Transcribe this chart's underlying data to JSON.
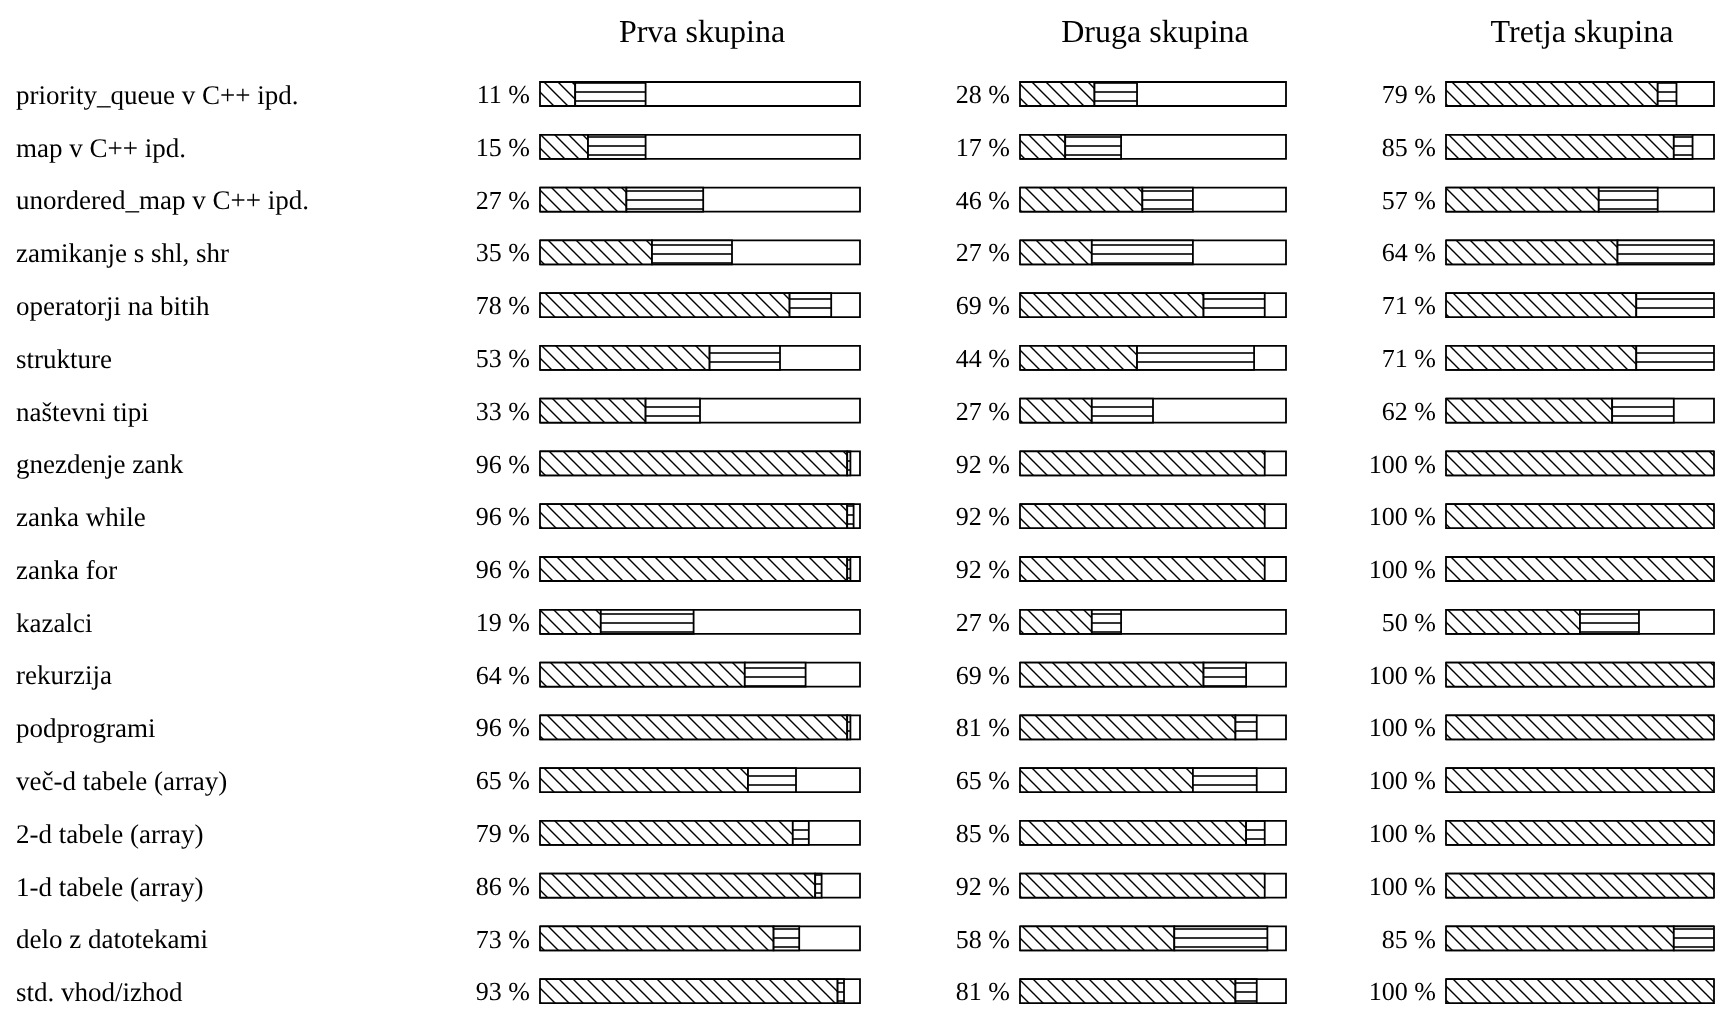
{
  "chart_data": [
    {
      "type": "bar",
      "orientation": "horizontal",
      "stacked": true,
      "title": "Prva skupina",
      "tick_labels": "y",
      "xlim": [
        0,
        100
      ],
      "categories": [
        "priority_queue v C++ ipd.",
        "map v C++ ipd.",
        "unordered_map v C++ ipd.",
        "zamikanje s shl, shr",
        "operatorji na bitih",
        "strukture",
        "naštevni tipi",
        "gnezdenje zank",
        "zanka while",
        "zanka for",
        "kazalci",
        "rekurzija",
        "podprogrami",
        "več-d tabele (array)",
        "2-d tabele (array)",
        "1-d tabele (array)",
        "delo z datotekami",
        "std. vhod/izhod"
      ],
      "series": [
        {
          "color": "#000000",
          "values": [
            11,
            15,
            27,
            35,
            78,
            53,
            33,
            96,
            96,
            96,
            19,
            64,
            96,
            65,
            79,
            86,
            73,
            93
          ],
          "value_labels": [
            "11 %",
            "15 %",
            "27 %",
            "35 %",
            "78 %",
            "53 %",
            "33 %",
            "96 %",
            "96 %",
            "96 %",
            "19 %",
            "64 %",
            "96 %",
            "65 %",
            "79 %",
            "86 %",
            "73 %",
            "93 %"
          ]
        },
        {
          "color": "#000000",
          "values": [
            22,
            18,
            24,
            25,
            13,
            22,
            17,
            1,
            2,
            1,
            29,
            19,
            1,
            15,
            5,
            2,
            8,
            2
          ]
        }
      ]
    },
    {
      "type": "bar",
      "orientation": "horizontal",
      "stacked": true,
      "title": "Druga skupina",
      "tick_labels": false,
      "xlim": [
        0,
        100
      ],
      "categories": [
        null,
        null,
        null,
        null,
        null,
        null,
        null,
        null,
        null,
        null,
        null,
        null,
        null,
        null,
        null,
        null,
        null,
        null
      ],
      "series": [
        {
          "color": "#000000",
          "values": [
            28,
            17,
            46,
            27,
            69,
            44,
            27,
            92,
            92,
            92,
            27,
            69,
            81,
            65,
            85,
            92,
            58,
            81
          ],
          "value_labels": [
            "28 %",
            "17 %",
            "46 %",
            "27 %",
            "69 %",
            "44 %",
            "27 %",
            "92 %",
            "92 %",
            "92 %",
            "27 %",
            "69 %",
            "81 %",
            "65 %",
            "85 %",
            "92 %",
            "58 %",
            "81 %"
          ]
        },
        {
          "color": "#000000",
          "values": [
            16,
            21,
            19,
            38,
            23,
            44,
            23,
            0,
            0,
            0,
            11,
            16,
            8,
            24,
            7,
            0,
            35,
            8
          ]
        }
      ]
    },
    {
      "type": "bar",
      "orientation": "horizontal",
      "stacked": true,
      "title": "Tretja skupina",
      "tick_labels": false,
      "xlim": [
        0,
        100
      ],
      "categories": [
        null,
        null,
        null,
        null,
        null,
        null,
        null,
        null,
        null,
        null,
        null,
        null,
        null,
        null,
        null,
        null,
        null,
        null
      ],
      "series": [
        {
          "color": "#000000",
          "values": [
            79,
            85,
            57,
            64,
            71,
            71,
            62,
            100,
            100,
            100,
            50,
            100,
            100,
            100,
            100,
            100,
            85,
            100
          ],
          "value_labels": [
            "79 %",
            "85 %",
            "57 %",
            "64 %",
            "71 %",
            "71 %",
            "62 %",
            "100 %",
            "100 %",
            "100 %",
            "50 %",
            "100 %",
            "100 %",
            "100 %",
            "100 %",
            "100 %",
            "85 %",
            "100 %"
          ]
        },
        {
          "color": "#000000",
          "values": [
            7,
            7,
            22,
            36,
            29,
            29,
            23,
            0,
            0,
            0,
            22,
            0,
            0,
            0,
            0,
            0,
            15,
            0
          ]
        }
      ]
    }
  ]
}
